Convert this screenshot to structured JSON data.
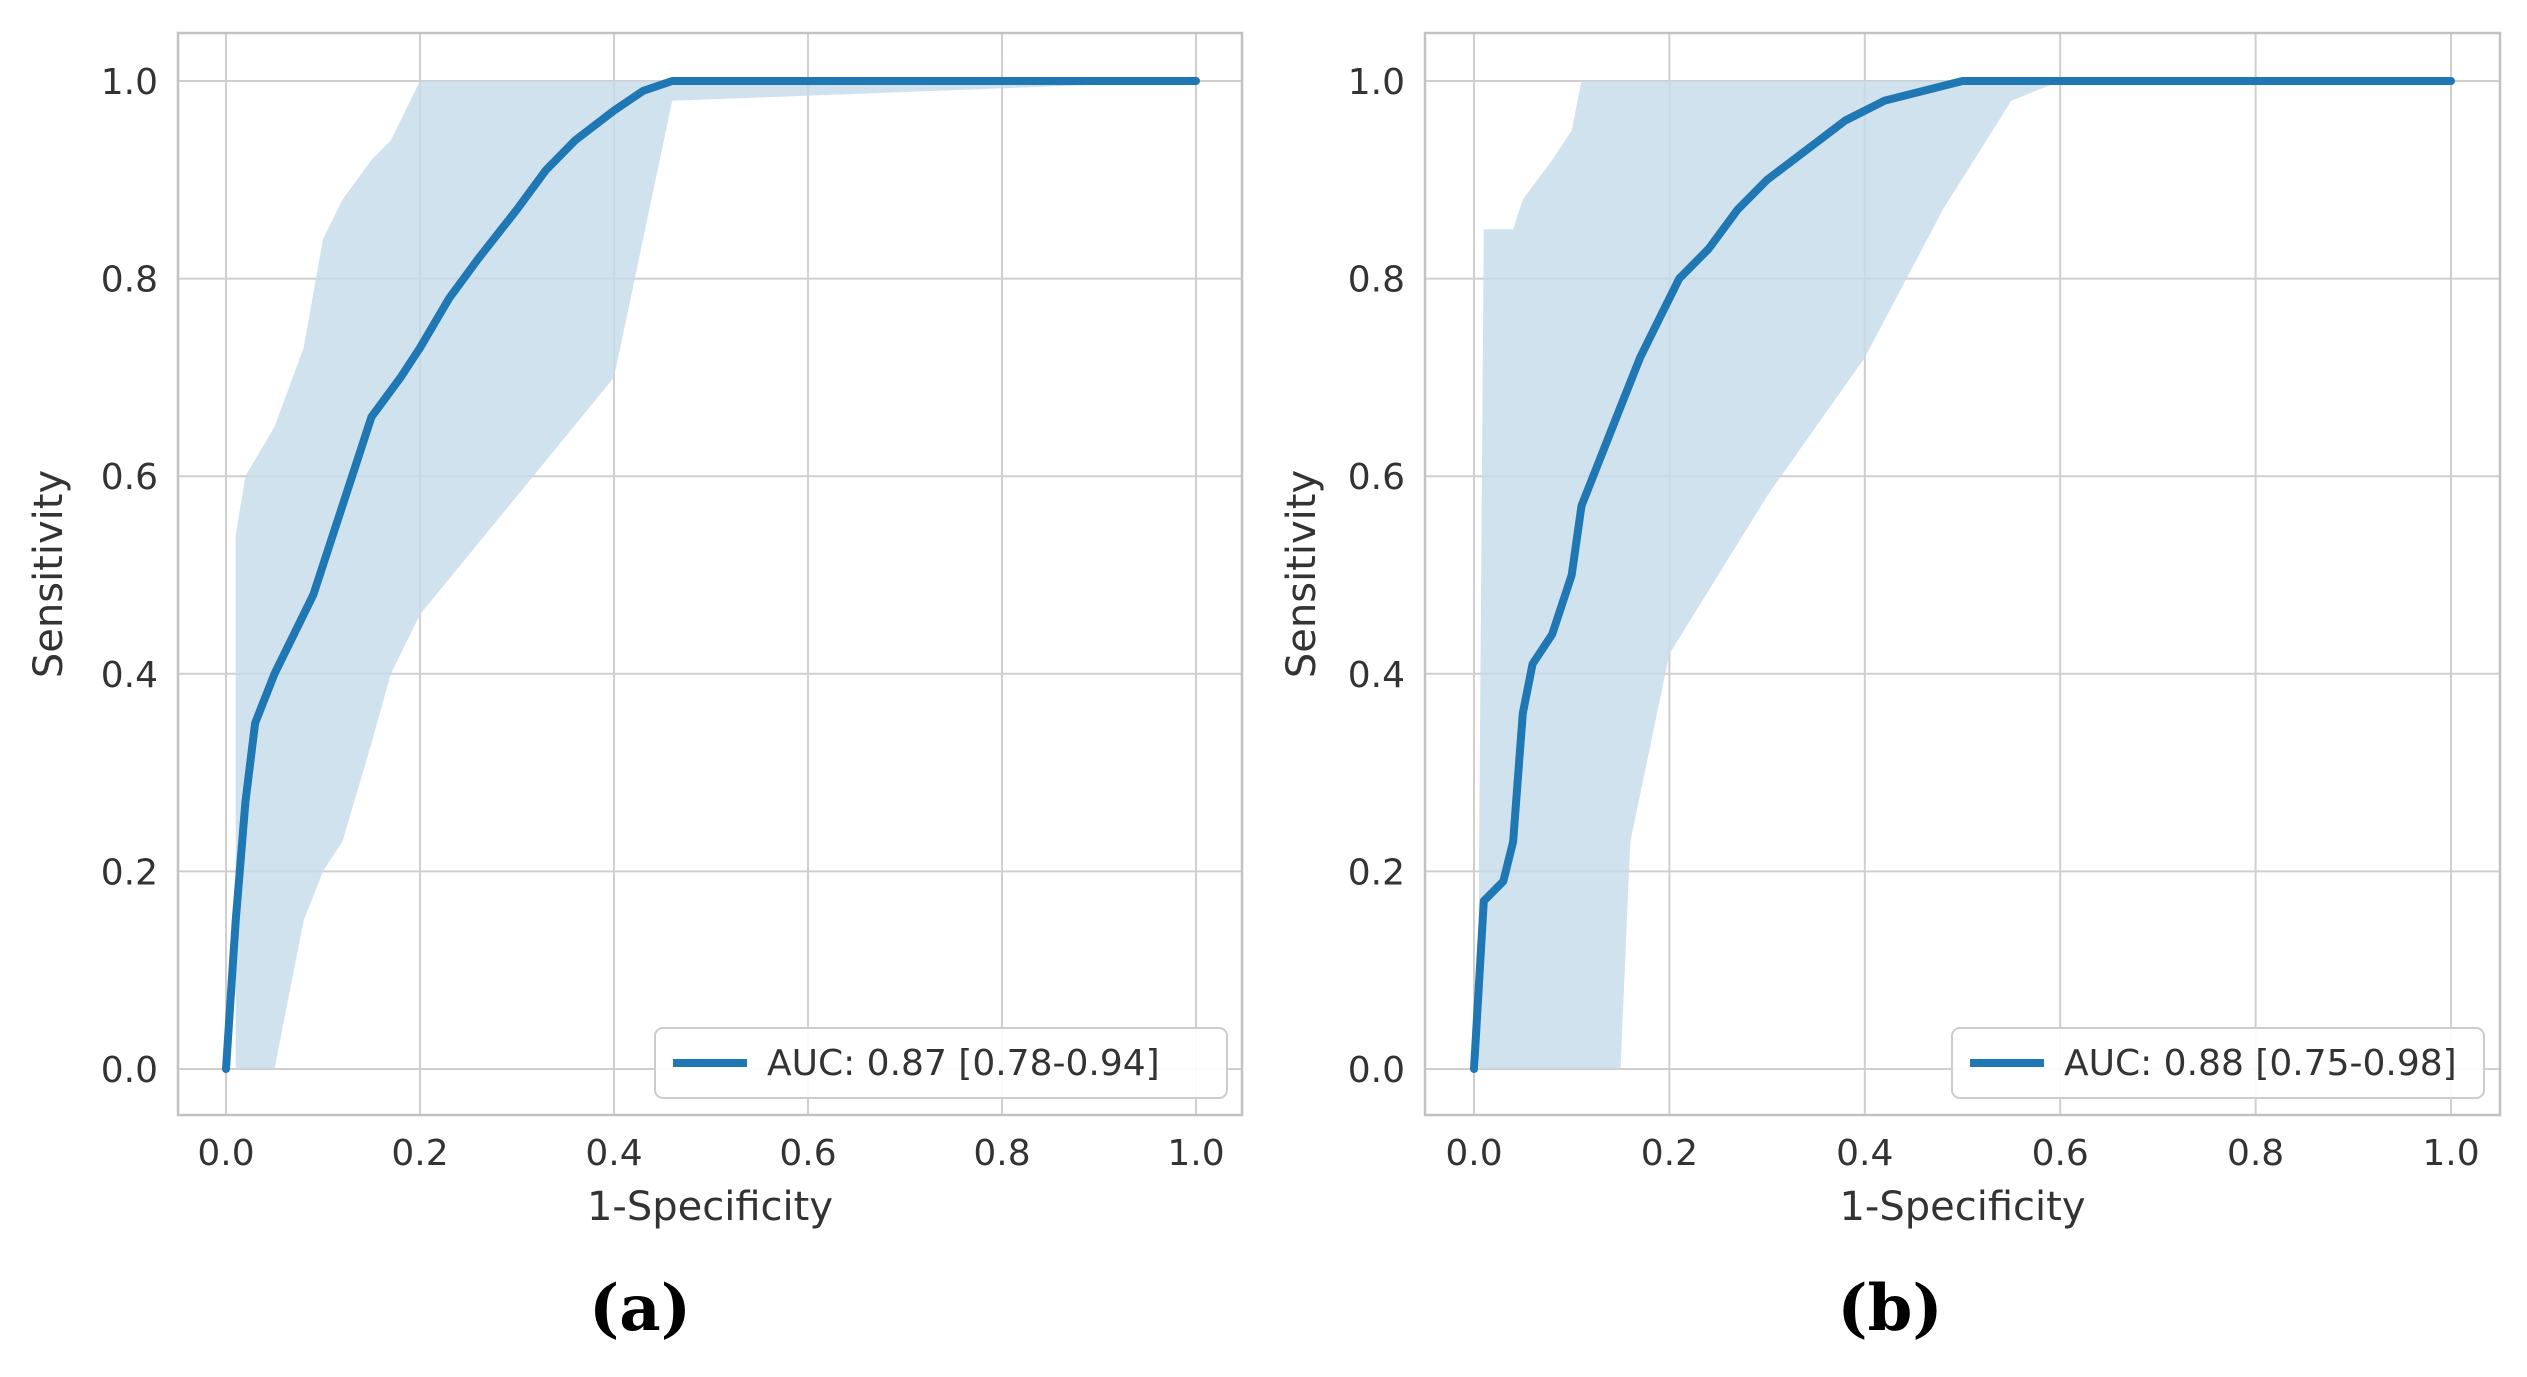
{
  "colors": {
    "line": "#1f77b4",
    "band": "#c6dbeb",
    "grid": "#cfcfcf",
    "frame": "#c2c2c2",
    "text": "#333333"
  },
  "chart_data": [
    {
      "type": "line",
      "caption": "(a)",
      "xlabel": "1-Specificity",
      "ylabel": "Sensitivity",
      "xlim": [
        0.0,
        1.0
      ],
      "ylim": [
        0.0,
        1.0
      ],
      "xticks": [
        "0.0",
        "0.2",
        "0.4",
        "0.6",
        "0.8",
        "1.0"
      ],
      "yticks": [
        "0.0",
        "0.2",
        "0.4",
        "0.6",
        "0.8",
        "1.0"
      ],
      "grid": true,
      "legend_position": "lower-right",
      "series": [
        {
          "name": "AUC: 0.87 [0.78-0.94]",
          "x": [
            0.0,
            0.01,
            0.02,
            0.03,
            0.05,
            0.07,
            0.09,
            0.11,
            0.13,
            0.15,
            0.18,
            0.2,
            0.23,
            0.26,
            0.3,
            0.33,
            0.36,
            0.4,
            0.43,
            0.46,
            0.5,
            1.0
          ],
          "y": [
            0.0,
            0.15,
            0.27,
            0.35,
            0.4,
            0.44,
            0.48,
            0.54,
            0.6,
            0.66,
            0.7,
            0.73,
            0.78,
            0.82,
            0.87,
            0.91,
            0.94,
            0.97,
            0.99,
            1.0,
            1.0,
            1.0
          ],
          "band_x": [
            0.01,
            0.02,
            0.05,
            0.08,
            0.1,
            0.12,
            0.15,
            0.17,
            0.2,
            0.3,
            0.4,
            0.46,
            1.0
          ],
          "band_upper": [
            0.54,
            0.6,
            0.65,
            0.73,
            0.84,
            0.88,
            0.92,
            0.94,
            1.0,
            1.0,
            1.0,
            1.0,
            1.0
          ],
          "band_lower": [
            0.0,
            0.0,
            0.0,
            0.15,
            0.2,
            0.23,
            0.33,
            0.4,
            0.46,
            0.58,
            0.7,
            0.98,
            1.0
          ]
        }
      ]
    },
    {
      "type": "line",
      "caption": "(b)",
      "xlabel": "1-Specificity",
      "ylabel": "Sensitivity",
      "xlim": [
        0.0,
        1.0
      ],
      "ylim": [
        0.0,
        1.0
      ],
      "xticks": [
        "0.0",
        "0.2",
        "0.4",
        "0.6",
        "0.8",
        "1.0"
      ],
      "yticks": [
        "0.0",
        "0.2",
        "0.4",
        "0.6",
        "0.8",
        "1.0"
      ],
      "grid": true,
      "legend_position": "lower-right",
      "series": [
        {
          "name": "AUC: 0.88 [0.75-0.98]",
          "x": [
            0.0,
            0.01,
            0.02,
            0.03,
            0.04,
            0.05,
            0.06,
            0.08,
            0.1,
            0.11,
            0.13,
            0.15,
            0.17,
            0.19,
            0.21,
            0.24,
            0.27,
            0.3,
            0.34,
            0.38,
            0.42,
            0.46,
            0.5,
            0.55,
            0.6,
            1.0
          ],
          "y": [
            0.0,
            0.17,
            0.18,
            0.19,
            0.23,
            0.36,
            0.41,
            0.44,
            0.5,
            0.57,
            0.62,
            0.67,
            0.72,
            0.76,
            0.8,
            0.83,
            0.87,
            0.9,
            0.93,
            0.96,
            0.98,
            0.99,
            1.0,
            1.0,
            1.0,
            1.0
          ],
          "band_x": [
            0.005,
            0.01,
            0.02,
            0.04,
            0.05,
            0.08,
            0.1,
            0.11,
            0.12,
            0.15,
            0.16,
            0.2,
            0.3,
            0.4,
            0.48,
            0.55,
            0.6,
            1.0
          ],
          "band_upper": [
            0.2,
            0.85,
            0.85,
            0.85,
            0.88,
            0.92,
            0.95,
            1.0,
            1.0,
            1.0,
            1.0,
            1.0,
            1.0,
            1.0,
            1.0,
            1.0,
            1.0,
            1.0
          ],
          "band_lower": [
            0.0,
            0.0,
            0.0,
            0.0,
            0.0,
            0.0,
            0.0,
            0.0,
            0.0,
            0.0,
            0.23,
            0.42,
            0.58,
            0.72,
            0.87,
            0.98,
            1.0,
            1.0
          ]
        }
      ]
    }
  ]
}
